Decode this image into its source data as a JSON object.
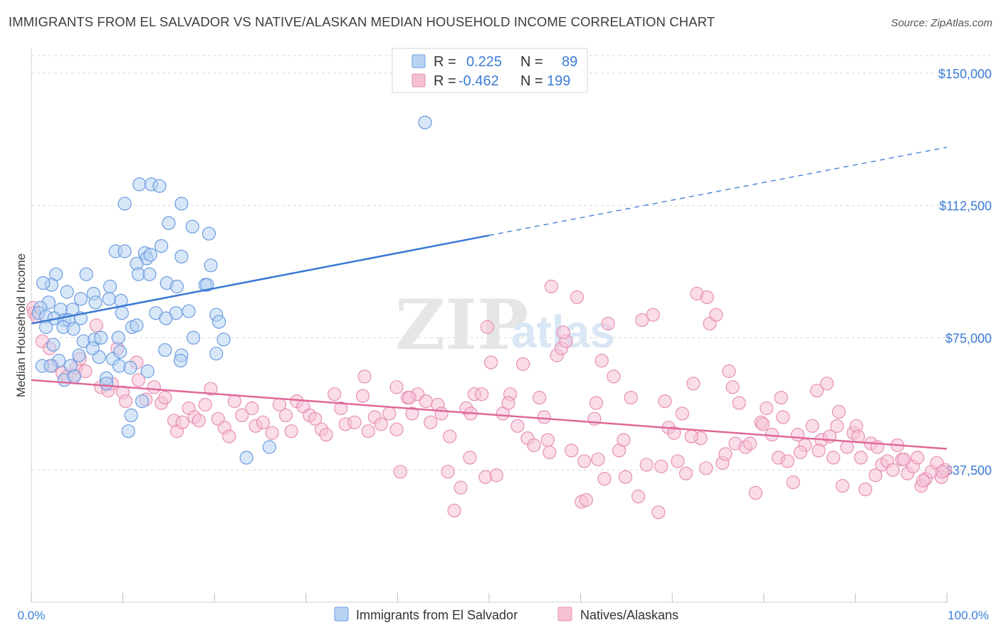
{
  "title": "IMMIGRANTS FROM EL SALVADOR VS NATIVE/ALASKAN MEDIAN HOUSEHOLD INCOME CORRELATION CHART",
  "source": "Source: ZipAtlas.com",
  "watermark": {
    "part1": "ZIP",
    "part2": "atlas"
  },
  "colors": {
    "blue": "#3a78d4",
    "blue_fill": "#b8d3f3",
    "pink": "#e0689a",
    "pink_fill": "#f6c1d5",
    "tick_text": "#3b7dd8",
    "grid": "#d8d8d8"
  },
  "legend": {
    "r_label": "R =",
    "n_label": "N =",
    "series": [
      {
        "r": "0.225",
        "n": "89"
      },
      {
        "r": "-0.462",
        "n": "199"
      }
    ]
  },
  "bottom_legend": [
    "Immigrants from El Salvador",
    "Natives/Alaskans"
  ],
  "chart_data": {
    "type": "scatter",
    "title": "IMMIGRANTS FROM EL SALVADOR VS NATIVE/ALASKAN MEDIAN HOUSEHOLD INCOME CORRELATION CHART",
    "ylabel": "Median Household Income",
    "xlabel": "",
    "x_tick_labels": [
      "0.0%",
      "100.0%"
    ],
    "y_tick_labels": [
      "$37,500",
      "$75,000",
      "$112,500",
      "$150,000"
    ],
    "y_ticks": [
      37500,
      75000,
      112500,
      150000
    ],
    "xlim": [
      0,
      100
    ],
    "ylim": [
      0,
      155000
    ],
    "grid": true,
    "legend_position": "top-center",
    "series": [
      {
        "name": "Immigrants from El Salvador",
        "color": "#3a78d4",
        "r": 0.225,
        "n": 89,
        "trend": {
          "x0": 0,
          "y0": 79000,
          "x1": 50,
          "y1": 104000,
          "dash_to_x": 100,
          "dash_to_y": 129000
        },
        "points": [
          [
            43.0,
            136000
          ],
          [
            11.8,
            118500
          ],
          [
            13.1,
            118500
          ],
          [
            14.0,
            118000
          ],
          [
            10.2,
            113000
          ],
          [
            16.4,
            113000
          ],
          [
            15.0,
            107500
          ],
          [
            17.6,
            106500
          ],
          [
            19.4,
            104500
          ],
          [
            9.2,
            99500
          ],
          [
            10.2,
            99500
          ],
          [
            12.4,
            99000
          ],
          [
            14.2,
            101000
          ],
          [
            12.6,
            97500
          ],
          [
            13.0,
            98500
          ],
          [
            16.4,
            98000
          ],
          [
            11.5,
            96000
          ],
          [
            19.6,
            95500
          ],
          [
            2.7,
            93000
          ],
          [
            6.0,
            93000
          ],
          [
            11.7,
            93000
          ],
          [
            12.9,
            93000
          ],
          [
            2.2,
            90000
          ],
          [
            3.9,
            88000
          ],
          [
            1.3,
            90500
          ],
          [
            5.4,
            86000
          ],
          [
            6.8,
            87500
          ],
          [
            8.5,
            86000
          ],
          [
            14.8,
            90500
          ],
          [
            15.9,
            89500
          ],
          [
            19.0,
            90000
          ],
          [
            19.2,
            90000
          ],
          [
            8.6,
            89500
          ],
          [
            9.8,
            85500
          ],
          [
            7.0,
            85000
          ],
          [
            1.9,
            85000
          ],
          [
            3.2,
            83000
          ],
          [
            4.5,
            83000
          ],
          [
            1.0,
            83500
          ],
          [
            0.8,
            82000
          ],
          [
            1.6,
            81000
          ],
          [
            2.5,
            80500
          ],
          [
            3.6,
            80000
          ],
          [
            4.1,
            80000
          ],
          [
            5.4,
            80500
          ],
          [
            9.9,
            82000
          ],
          [
            13.6,
            82000
          ],
          [
            15.8,
            82000
          ],
          [
            17.2,
            82500
          ],
          [
            20.2,
            81500
          ],
          [
            14.7,
            80500
          ],
          [
            20.5,
            79500
          ],
          [
            11.0,
            78000
          ],
          [
            11.5,
            78500
          ],
          [
            3.5,
            78000
          ],
          [
            4.6,
            77500
          ],
          [
            1.6,
            78000
          ],
          [
            5.7,
            74000
          ],
          [
            6.9,
            74500
          ],
          [
            7.6,
            75000
          ],
          [
            9.5,
            75000
          ],
          [
            17.7,
            75000
          ],
          [
            21.0,
            74500
          ],
          [
            14.6,
            71500
          ],
          [
            16.4,
            70000
          ],
          [
            7.4,
            69500
          ],
          [
            3.0,
            68500
          ],
          [
            4.3,
            67000
          ],
          [
            5.2,
            70000
          ],
          [
            8.9,
            69000
          ],
          [
            9.6,
            67000
          ],
          [
            10.8,
            66500
          ],
          [
            12.7,
            65500
          ],
          [
            8.2,
            63500
          ],
          [
            1.2,
            67000
          ],
          [
            2.1,
            67000
          ],
          [
            3.6,
            63000
          ],
          [
            4.7,
            64000
          ],
          [
            8.2,
            62000
          ],
          [
            16.3,
            68500
          ],
          [
            20.2,
            70500
          ],
          [
            12.1,
            57000
          ],
          [
            10.9,
            53000
          ],
          [
            10.6,
            48500
          ],
          [
            23.5,
            41000
          ],
          [
            26.0,
            44000
          ],
          [
            2.4,
            73000
          ],
          [
            6.7,
            72000
          ],
          [
            9.7,
            71000
          ]
        ]
      },
      {
        "name": "Natives/Alaskans",
        "color": "#e0689a",
        "r": -0.462,
        "n": 199,
        "trend": {
          "x0": 0,
          "y0": 63000,
          "x1": 100,
          "y1": 43500
        },
        "points": [
          [
            0.2,
            83500
          ],
          [
            0.3,
            82000
          ],
          [
            0.6,
            81000
          ],
          [
            1.2,
            74000
          ],
          [
            2.0,
            72000
          ],
          [
            2.3,
            67000
          ],
          [
            3.4,
            65000
          ],
          [
            3.9,
            64000
          ],
          [
            4.7,
            64500
          ],
          [
            4.9,
            66500
          ],
          [
            5.3,
            69000
          ],
          [
            5.9,
            65500
          ],
          [
            7.1,
            78500
          ],
          [
            7.6,
            61000
          ],
          [
            8.4,
            60000
          ],
          [
            8.8,
            62000
          ],
          [
            9.4,
            72000
          ],
          [
            10.0,
            59500
          ],
          [
            10.3,
            57000
          ],
          [
            11.5,
            68000
          ],
          [
            11.7,
            63000
          ],
          [
            12.5,
            57500
          ],
          [
            13.4,
            61000
          ],
          [
            14.2,
            56500
          ],
          [
            14.6,
            58000
          ],
          [
            15.6,
            51500
          ],
          [
            15.9,
            48500
          ],
          [
            16.5,
            51000
          ],
          [
            17.2,
            55000
          ],
          [
            17.8,
            52500
          ],
          [
            18.3,
            51500
          ],
          [
            19.0,
            56000
          ],
          [
            19.6,
            60500
          ],
          [
            20.4,
            52000
          ],
          [
            21.1,
            49500
          ],
          [
            21.6,
            47000
          ],
          [
            22.2,
            57000
          ],
          [
            23.0,
            53000
          ],
          [
            24.1,
            55000
          ],
          [
            24.5,
            50000
          ],
          [
            25.3,
            51000
          ],
          [
            26.3,
            48000
          ],
          [
            27.1,
            56000
          ],
          [
            27.8,
            53000
          ],
          [
            28.4,
            48500
          ],
          [
            29.0,
            57000
          ],
          [
            29.7,
            55500
          ],
          [
            30.4,
            53000
          ],
          [
            31.0,
            52000
          ],
          [
            31.7,
            49000
          ],
          [
            32.2,
            47500
          ],
          [
            33.1,
            59000
          ],
          [
            33.8,
            55000
          ],
          [
            34.3,
            50500
          ],
          [
            35.3,
            51000
          ],
          [
            36.2,
            58500
          ],
          [
            36.8,
            48500
          ],
          [
            37.5,
            52500
          ],
          [
            38.2,
            50500
          ],
          [
            39.1,
            53500
          ],
          [
            39.9,
            49000
          ],
          [
            40.3,
            37000
          ],
          [
            41.1,
            58000
          ],
          [
            41.6,
            53500
          ],
          [
            42.2,
            59000
          ],
          [
            43.1,
            57000
          ],
          [
            43.6,
            51000
          ],
          [
            44.4,
            56000
          ],
          [
            44.8,
            53500
          ],
          [
            45.5,
            37000
          ],
          [
            46.2,
            26000
          ],
          [
            46.9,
            32500
          ],
          [
            47.5,
            55000
          ],
          [
            47.9,
            41000
          ],
          [
            48.4,
            59000
          ],
          [
            49.2,
            59000
          ],
          [
            49.6,
            35500
          ],
          [
            50.2,
            68000
          ],
          [
            50.8,
            36000
          ],
          [
            51.5,
            53500
          ],
          [
            52.3,
            59000
          ],
          [
            53.1,
            50000
          ],
          [
            53.7,
            67500
          ],
          [
            54.2,
            46500
          ],
          [
            54.9,
            44500
          ],
          [
            55.5,
            58000
          ],
          [
            56.0,
            52500
          ],
          [
            56.6,
            42500
          ],
          [
            57.4,
            70000
          ],
          [
            57.9,
            72000
          ],
          [
            58.4,
            74000
          ],
          [
            59.0,
            43000
          ],
          [
            59.6,
            86500
          ],
          [
            60.1,
            28500
          ],
          [
            60.6,
            29000
          ],
          [
            61.5,
            52000
          ],
          [
            61.9,
            40500
          ],
          [
            62.3,
            68500
          ],
          [
            62.6,
            35000
          ],
          [
            63.0,
            79000
          ],
          [
            63.6,
            64000
          ],
          [
            64.2,
            43000
          ],
          [
            64.7,
            46000
          ],
          [
            65.5,
            58000
          ],
          [
            66.3,
            30000
          ],
          [
            66.7,
            80000
          ],
          [
            67.2,
            39000
          ],
          [
            67.9,
            81500
          ],
          [
            68.5,
            25500
          ],
          [
            69.2,
            57000
          ],
          [
            69.6,
            49500
          ],
          [
            70.2,
            48000
          ],
          [
            70.6,
            40000
          ],
          [
            71.1,
            53500
          ],
          [
            71.5,
            36500
          ],
          [
            72.3,
            62000
          ],
          [
            72.7,
            87500
          ],
          [
            73.1,
            46500
          ],
          [
            73.7,
            38000
          ],
          [
            74.1,
            79000
          ],
          [
            74.8,
            81500
          ],
          [
            75.5,
            39500
          ],
          [
            76.2,
            65500
          ],
          [
            76.6,
            61000
          ],
          [
            76.9,
            45000
          ],
          [
            77.3,
            56500
          ],
          [
            78.0,
            44000
          ],
          [
            78.5,
            45000
          ],
          [
            79.1,
            31000
          ],
          [
            79.7,
            51000
          ],
          [
            80.3,
            55000
          ],
          [
            80.9,
            47500
          ],
          [
            81.6,
            41000
          ],
          [
            82.1,
            52500
          ],
          [
            82.6,
            40000
          ],
          [
            83.2,
            34000
          ],
          [
            83.7,
            47500
          ],
          [
            84.5,
            44500
          ],
          [
            85.3,
            50000
          ],
          [
            85.8,
            60000
          ],
          [
            86.3,
            46000
          ],
          [
            86.9,
            62000
          ],
          [
            87.2,
            47000
          ],
          [
            87.6,
            41000
          ],
          [
            88.2,
            54000
          ],
          [
            88.6,
            33000
          ],
          [
            89.1,
            44000
          ],
          [
            89.8,
            48000
          ],
          [
            90.1,
            50000
          ],
          [
            90.6,
            41000
          ],
          [
            91.1,
            32000
          ],
          [
            91.7,
            45000
          ],
          [
            92.2,
            36000
          ],
          [
            92.9,
            39000
          ],
          [
            93.5,
            40000
          ],
          [
            94.1,
            37500
          ],
          [
            94.6,
            44500
          ],
          [
            95.1,
            40500
          ],
          [
            95.7,
            36500
          ],
          [
            96.3,
            38500
          ],
          [
            96.8,
            41000
          ],
          [
            97.2,
            33000
          ],
          [
            97.7,
            35000
          ],
          [
            98.3,
            37000
          ],
          [
            98.9,
            39500
          ],
          [
            99.4,
            35500
          ],
          [
            99.8,
            37500
          ],
          [
            56.8,
            89500
          ],
          [
            73.8,
            86500
          ],
          [
            36.4,
            64000
          ],
          [
            39.9,
            61000
          ],
          [
            41.3,
            58000
          ],
          [
            45.7,
            47000
          ],
          [
            48.0,
            53500
          ],
          [
            52.1,
            56500
          ],
          [
            56.4,
            46000
          ],
          [
            60.4,
            40000
          ],
          [
            64.9,
            35500
          ],
          [
            68.8,
            38500
          ],
          [
            72.1,
            47000
          ],
          [
            75.8,
            42000
          ],
          [
            79.9,
            50500
          ],
          [
            81.9,
            58000
          ],
          [
            84.0,
            42500
          ],
          [
            86.0,
            43000
          ],
          [
            88.0,
            50000
          ],
          [
            90.3,
            47000
          ],
          [
            92.4,
            44000
          ],
          [
            95.3,
            40500
          ],
          [
            97.4,
            34500
          ],
          [
            99.5,
            37000
          ],
          [
            49.8,
            78000
          ],
          [
            58.1,
            76500
          ],
          [
            61.7,
            56500
          ]
        ]
      }
    ]
  }
}
